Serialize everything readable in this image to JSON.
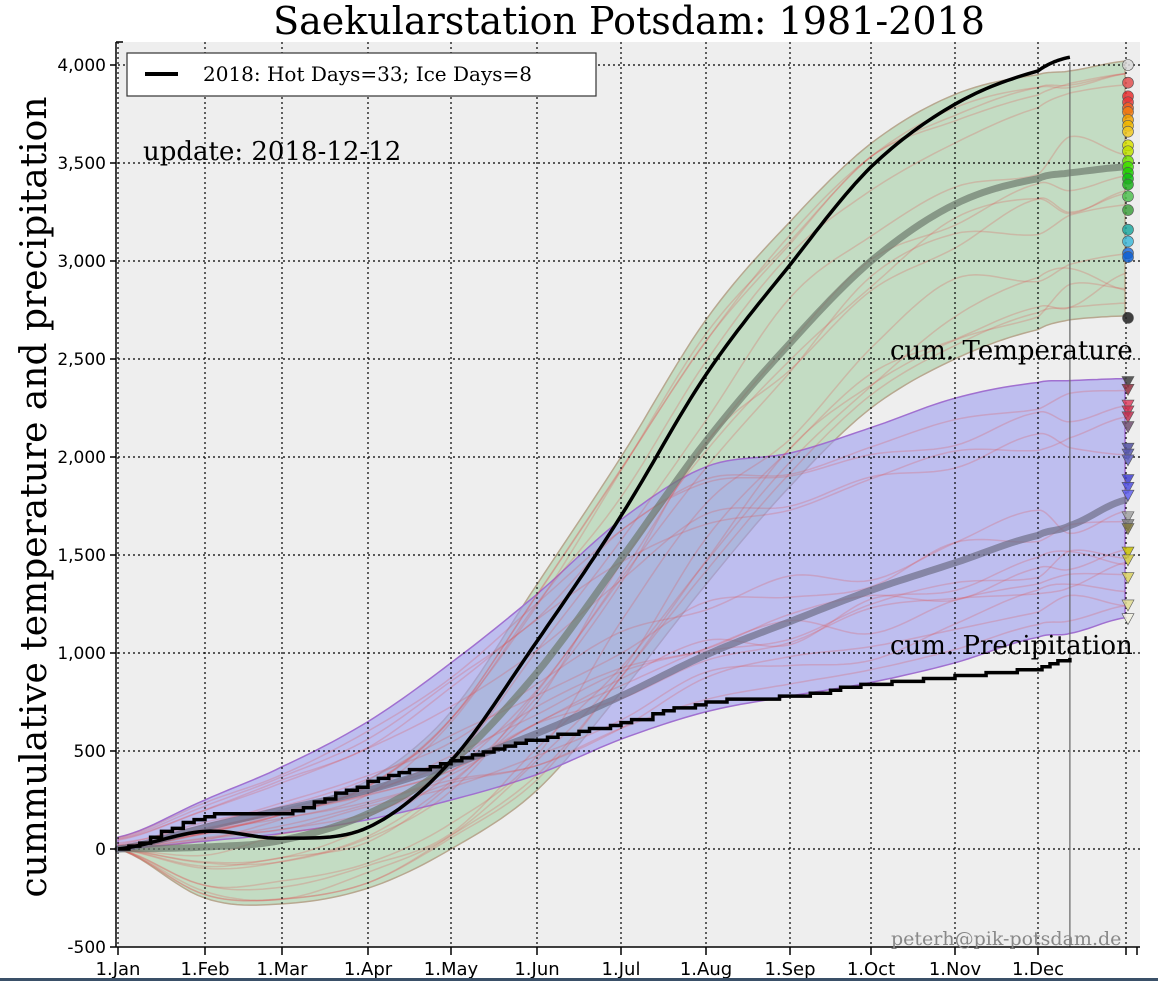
{
  "chart_data": {
    "type": "line",
    "title": "Saekularstation Potsdam: 1981-2018",
    "ylabel": "cummulative temperature and precipitation",
    "xlabel": "",
    "ylim": [
      -500,
      4100
    ],
    "xlim_day_of_year": [
      1,
      372
    ],
    "grid": true,
    "y_ticks": [
      -500,
      0,
      500,
      1000,
      1500,
      2000,
      2500,
      3000,
      3500,
      4000
    ],
    "y_tick_labels": [
      "-500",
      "0",
      "500",
      "1,000",
      "1,500",
      "2,000",
      "2,500",
      "3,000",
      "3,500",
      "4,000"
    ],
    "x_ticks_day_of_year": [
      1,
      32,
      60,
      91,
      121,
      152,
      182,
      213,
      244,
      274,
      305,
      335
    ],
    "x_tick_labels": [
      "1.Jan",
      "1.Feb",
      "1.Mar",
      "1.Apr",
      "1.May",
      "1.Jun",
      "1.Jul",
      "1.Aug",
      "1.Sep",
      "1.Oct",
      "1.Nov",
      "1.Dec"
    ],
    "legend": {
      "placement": "top-left",
      "entries": [
        {
          "label": "2018: Hot Days=33; Ice Days=8",
          "color": "#000000"
        }
      ]
    },
    "annotations": {
      "update": "update: 2018-12-12",
      "temperature_label": "cum. Temperature",
      "precipitation_label": "cum. Precipitation",
      "credit": "peterh@pik-potsdam.de",
      "current_day_of_year": 346
    },
    "x": [
      1,
      32,
      60,
      91,
      121,
      152,
      182,
      213,
      244,
      274,
      305,
      335,
      346,
      365
    ],
    "series": [
      {
        "name": "2018 cumulative temperature",
        "color": "#000000",
        "values": [
          0,
          90,
          55,
          110,
          450,
          1060,
          1700,
          2420,
          2980,
          3480,
          3800,
          3970,
          4040,
          null
        ]
      },
      {
        "name": "2018 cumulative precipitation",
        "color": "#000000",
        "step": true,
        "values": [
          0,
          170,
          185,
          340,
          450,
          560,
          640,
          750,
          780,
          840,
          880,
          920,
          970,
          null
        ]
      },
      {
        "name": "mean cumulative temperature 1981-2018",
        "color": "#6e7a6e",
        "values": [
          0,
          10,
          45,
          180,
          440,
          900,
          1480,
          2080,
          2580,
          3000,
          3290,
          3420,
          3450,
          3480
        ]
      },
      {
        "name": "mean cumulative precipitation 1981-2018",
        "color": "#6e6e88",
        "values": [
          0,
          110,
          200,
          300,
          430,
          590,
          780,
          990,
          1160,
          1320,
          1460,
          1600,
          1650,
          1780
        ]
      }
    ],
    "bands": [
      {
        "name": "temperature range 1981-2018",
        "color": "#a8d0a8",
        "lower": [
          0,
          -250,
          -280,
          -200,
          0,
          300,
          800,
          1350,
          1850,
          2250,
          2500,
          2650,
          2700,
          2720
        ],
        "upper": [
          0,
          100,
          200,
          350,
          700,
          1350,
          2000,
          2700,
          3200,
          3600,
          3850,
          3950,
          3970,
          4020
        ]
      },
      {
        "name": "precipitation range 1981-2018",
        "color": "#9f9ff0",
        "lower": [
          0,
          40,
          80,
          150,
          250,
          380,
          560,
          700,
          780,
          850,
          950,
          1080,
          1100,
          1180
        ],
        "upper": [
          60,
          250,
          420,
          650,
          950,
          1300,
          1680,
          1950,
          2020,
          2150,
          2300,
          2380,
          2390,
          2400
        ]
      }
    ],
    "year_end_temperature_markers": [
      {
        "value": 4000,
        "color": "#d8d8d8"
      },
      {
        "value": 3910,
        "color": "#e05050"
      },
      {
        "value": 3840,
        "color": "#e83030"
      },
      {
        "value": 3810,
        "color": "#e83838"
      },
      {
        "value": 3780,
        "color": "#f06020"
      },
      {
        "value": 3760,
        "color": "#f07a10"
      },
      {
        "value": 3720,
        "color": "#f0a000"
      },
      {
        "value": 3690,
        "color": "#f0b800"
      },
      {
        "value": 3660,
        "color": "#f0c820"
      },
      {
        "value": 3590,
        "color": "#d8e000"
      },
      {
        "value": 3560,
        "color": "#c0e000"
      },
      {
        "value": 3510,
        "color": "#70e000"
      },
      {
        "value": 3480,
        "color": "#40e000"
      },
      {
        "value": 3450,
        "color": "#20d000"
      },
      {
        "value": 3420,
        "color": "#10c010"
      },
      {
        "value": 3390,
        "color": "#20b020"
      },
      {
        "value": 3330,
        "color": "#50c050"
      },
      {
        "value": 3260,
        "color": "#40a040"
      },
      {
        "value": 3160,
        "color": "#20a8a0"
      },
      {
        "value": 3100,
        "color": "#40b8d8"
      },
      {
        "value": 3040,
        "color": "#2070e0"
      },
      {
        "value": 3020,
        "color": "#1060d0"
      },
      {
        "value": 2710,
        "color": "#202020"
      }
    ],
    "year_end_precipitation_markers": [
      {
        "value": 2380,
        "color": "#404040"
      },
      {
        "value": 2340,
        "color": "#903040"
      },
      {
        "value": 2260,
        "color": "#e04060"
      },
      {
        "value": 2230,
        "color": "#d03050"
      },
      {
        "value": 2200,
        "color": "#c03050"
      },
      {
        "value": 2150,
        "color": "#705070"
      },
      {
        "value": 2040,
        "color": "#5050a0"
      },
      {
        "value": 2010,
        "color": "#5858b0"
      },
      {
        "value": 1980,
        "color": "#6060c0"
      },
      {
        "value": 1880,
        "color": "#4040d0"
      },
      {
        "value": 1840,
        "color": "#5050e0"
      },
      {
        "value": 1800,
        "color": "#6060f0"
      },
      {
        "value": 1690,
        "color": "#a0a0a0"
      },
      {
        "value": 1650,
        "color": "#808080"
      },
      {
        "value": 1630,
        "color": "#807840"
      },
      {
        "value": 1510,
        "color": "#c8c000"
      },
      {
        "value": 1470,
        "color": "#d0c840"
      },
      {
        "value": 1380,
        "color": "#d8d060"
      },
      {
        "value": 1240,
        "color": "#e0dc90"
      },
      {
        "value": 1170,
        "color": "#f0f0e0"
      }
    ]
  }
}
